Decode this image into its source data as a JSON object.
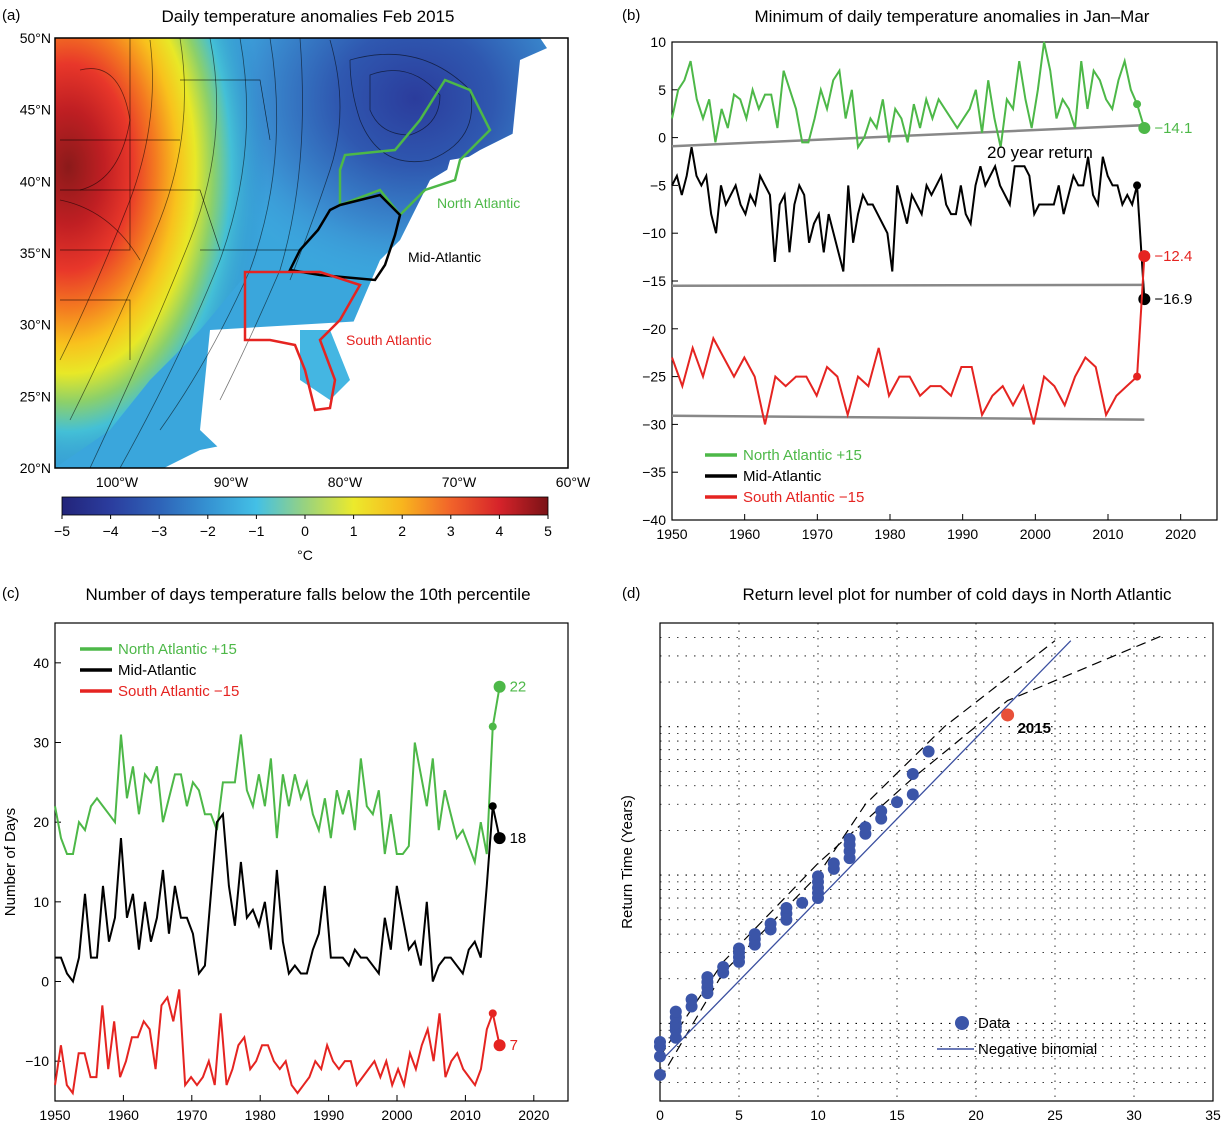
{
  "panels": {
    "a": {
      "tag": "(a)",
      "title": "Daily temperature anomalies Feb 2015",
      "lat_labels": [
        "50°N",
        "45°N",
        "40°N",
        "35°N",
        "30°N",
        "25°N",
        "20°N"
      ],
      "lon_labels": [
        "100°W",
        "90°W",
        "80°W",
        "70°W",
        "60°W"
      ],
      "colorbar_ticks": [
        "−5",
        "−4",
        "−3",
        "−2",
        "−1",
        "0",
        "1",
        "2",
        "3",
        "4",
        "5"
      ],
      "colorbar_label": "°C",
      "region_labels": {
        "north": "North Atlantic",
        "mid": "Mid-Atlantic",
        "south": "South Atlantic"
      },
      "colors": {
        "north": "#4db848",
        "mid": "#000000",
        "south": "#e52421"
      }
    },
    "b": {
      "tag": "(b)",
      "title": "Minimum of daily temperature anomalies in Jan–Mar",
      "annotation": "20 year return",
      "end_labels": [
        "−14.1",
        "−16.9",
        "−12.4"
      ],
      "legend": [
        "North Atlantic +15",
        "Mid-Atlantic",
        "South Atlantic −15"
      ]
    },
    "c": {
      "tag": "(c)",
      "title": "Number of days temperature falls below the 10th percentile",
      "end_labels": [
        "22",
        "18",
        "7"
      ],
      "legend": [
        "North Atlantic +15",
        "Mid-Atlantic",
        "South Atlantic −15"
      ]
    },
    "d": {
      "tag": "(d)",
      "title": "Return level plot for number of cold days in North Atlantic",
      "point_label": "2015",
      "legend": [
        "Data",
        "Negative binomial"
      ]
    }
  },
  "chart_data": [
    {
      "panel": "a",
      "type": "heatmap",
      "title": "Daily temperature anomalies Feb 2015",
      "xlim": [
        -105,
        -60
      ],
      "ylim": [
        20,
        50
      ],
      "colorbar_range": [
        -5,
        5
      ],
      "colorbar_unit": "°C",
      "field_samples_lonlat_value": [
        [
          -104,
          46,
          4.5
        ],
        [
          -100,
          44,
          4.8
        ],
        [
          -96,
          44,
          3.5
        ],
        [
          -92,
          45,
          1.5
        ],
        [
          -88,
          45,
          -0.5
        ],
        [
          -84,
          46,
          -2.5
        ],
        [
          -80,
          47,
          -3.8
        ],
        [
          -75,
          47,
          -4.6
        ],
        [
          -70,
          46,
          -3.8
        ],
        [
          -65,
          46,
          -2.8
        ],
        [
          -104,
          40,
          4.3
        ],
        [
          -100,
          39,
          4.0
        ],
        [
          -96,
          38,
          2.5
        ],
        [
          -92,
          38,
          1.0
        ],
        [
          -88,
          38,
          -0.3
        ],
        [
          -84,
          40,
          -1.5
        ],
        [
          -80,
          41,
          -2.5
        ],
        [
          -76,
          42,
          -3.0
        ],
        [
          -104,
          33,
          1.5
        ],
        [
          -100,
          33,
          2.5
        ],
        [
          -96,
          33,
          1.5
        ],
        [
          -92,
          33,
          0.5
        ],
        [
          -88,
          33,
          -0.3
        ],
        [
          -84,
          32,
          -0.8
        ],
        [
          -80,
          33,
          -1.5
        ],
        [
          -104,
          26,
          0.5
        ],
        [
          -100,
          27,
          0.3
        ],
        [
          -96,
          28,
          -0.3
        ],
        [
          -84,
          28,
          -1.0
        ],
        [
          -82,
          26,
          -1.5
        ]
      ]
    },
    {
      "panel": "b",
      "type": "line",
      "title": "Minimum of daily temperature anomalies in Jan–Mar",
      "xlim": [
        1950,
        2025
      ],
      "ylim": [
        -40,
        10
      ],
      "yticks": [
        10,
        5,
        0,
        -5,
        -10,
        -15,
        -20,
        -25,
        -30,
        -35,
        -40
      ],
      "xticks": [
        1950,
        1960,
        1970,
        1980,
        1990,
        2000,
        2010,
        2020
      ],
      "x_start": 1950,
      "series": [
        {
          "name": "North Atlantic +15",
          "color": "#4db848",
          "values": [
            2,
            5,
            6,
            8,
            4,
            2,
            4,
            -0.5,
            3,
            1,
            4.5,
            4,
            2,
            5,
            3,
            4.5,
            4.5,
            1,
            7,
            5,
            3,
            -0.5,
            -0.5,
            2,
            5,
            3,
            6,
            7,
            2,
            5,
            -1,
            0,
            2,
            1,
            4,
            -0.5,
            3,
            2,
            -0.5,
            3.5,
            1,
            4,
            2,
            4,
            3,
            2,
            1,
            2,
            3,
            5,
            0.5,
            6,
            2,
            -1,
            4,
            3,
            8,
            4,
            1,
            5,
            10,
            7,
            2,
            4,
            3,
            1,
            8,
            3,
            7,
            6,
            4,
            3,
            6,
            8,
            5,
            3.5
          ],
          "last": 1,
          "end_label": "−14.1"
        },
        {
          "name": "Mid-Atlantic",
          "color": "#000000",
          "values": [
            -5,
            -4,
            -6,
            -4,
            -1,
            -4,
            -5,
            -4,
            -8,
            -10,
            -5,
            -7,
            -6,
            -5,
            -7,
            -8,
            -6,
            -7,
            -4,
            -5,
            -6,
            -13,
            -7,
            -6,
            -12,
            -7,
            -5,
            -6,
            -11,
            -9,
            -8,
            -12,
            -8,
            -10,
            -12,
            -14,
            -5,
            -11,
            -8,
            -6,
            -7,
            -7,
            -8,
            -9,
            -10,
            -14,
            -5,
            -7,
            -9,
            -6,
            -7,
            -8,
            -5,
            -6,
            -5,
            -4,
            -7,
            -8,
            -8,
            -5,
            -8,
            -9,
            -5,
            -3,
            -5,
            -4,
            -3,
            -5,
            -6,
            -7,
            -3,
            -3,
            -3,
            -4,
            -8,
            -7,
            -7,
            -7,
            -7,
            -5,
            -8,
            -6,
            -4,
            -5,
            -5,
            -2,
            -6,
            -7,
            -2,
            -4,
            -5,
            -5,
            -7,
            -6,
            -7,
            -5
          ],
          "last": -16.9,
          "end_label": "−16.9"
        },
        {
          "name": "South Atlantic −15",
          "color": "#e52421",
          "values": [
            -23,
            -26,
            -22,
            -25,
            -21,
            -23,
            -25,
            -23,
            -25,
            -30,
            -25,
            -26,
            -25,
            -25,
            -27,
            -24,
            -25,
            -29,
            -25,
            -26,
            -22,
            -27,
            -25,
            -25,
            -27,
            -26,
            -26,
            -27,
            -24,
            -24,
            -29,
            -27,
            -26,
            -28,
            -26,
            -30,
            -25,
            -26,
            -28,
            -25,
            -23,
            -24,
            -29,
            -27,
            -26,
            -25
          ],
          "last": -12.4,
          "end_label": "−12.4"
        }
      ],
      "return_lines": [
        {
          "series": "North Atlantic +15",
          "x": [
            1950,
            2015
          ],
          "y": [
            -0.9,
            1.3
          ]
        },
        {
          "series": "Mid-Atlantic",
          "x": [
            1950,
            2015
          ],
          "y": [
            -15.5,
            -15.4
          ]
        },
        {
          "series": "South Atlantic −15",
          "x": [
            1950,
            2015
          ],
          "y": [
            -29.1,
            -29.5
          ]
        }
      ],
      "legend": "bottom-left"
    },
    {
      "panel": "c",
      "type": "line",
      "title": "Number of days temperature falls below the 10th percentile",
      "ylabel": "Number of Days",
      "xlim": [
        1950,
        2025
      ],
      "ylim": [
        -15,
        45
      ],
      "yticks": [
        40,
        30,
        20,
        10,
        0,
        -10
      ],
      "xticks": [
        1950,
        1960,
        1970,
        1980,
        1990,
        2000,
        2010,
        2020
      ],
      "x_start": 1950,
      "series": [
        {
          "name": "North Atlantic +15",
          "color": "#4db848",
          "values": [
            22,
            18,
            16,
            16,
            20,
            19,
            22,
            23,
            22,
            21,
            20,
            31,
            23,
            27,
            21,
            26,
            25,
            27,
            20,
            23,
            26,
            26,
            22,
            25,
            24,
            21,
            21,
            19,
            25,
            25,
            25,
            31,
            24,
            22,
            26,
            22,
            28,
            18,
            26,
            22,
            26,
            23,
            25,
            21,
            19,
            23,
            18,
            24,
            21,
            24,
            19,
            28,
            22,
            21,
            24,
            16,
            21,
            16,
            16,
            17,
            30,
            26,
            22,
            28,
            19,
            24,
            21,
            18,
            19,
            17,
            15,
            20,
            16,
            32
          ],
          "last": 37,
          "end_label": "22"
        },
        {
          "name": "Mid-Atlantic",
          "color": "#000000",
          "values": [
            3,
            3,
            1,
            0,
            3,
            11,
            3,
            3,
            12,
            5,
            8,
            18,
            8,
            11,
            4,
            10,
            5,
            8,
            14,
            6,
            12,
            8,
            8,
            6,
            1,
            2,
            11,
            20,
            21,
            12,
            7,
            15,
            8,
            9,
            7,
            10,
            4,
            14,
            5,
            1,
            2,
            1,
            1,
            4,
            6,
            12,
            3,
            3,
            3,
            2,
            4,
            3,
            3,
            2,
            1,
            8,
            4,
            12,
            8,
            4,
            5,
            2,
            10,
            0,
            2,
            3,
            3,
            2,
            1,
            4,
            5,
            3,
            12,
            22
          ],
          "last": 18,
          "end_label": "18"
        },
        {
          "name": "South Atlantic −15",
          "color": "#e52421",
          "values": [
            -13,
            -8,
            -13,
            -14,
            -9,
            -9,
            -12,
            -12,
            -3,
            -11,
            -5,
            -12,
            -10,
            -7,
            -7,
            -5,
            -6,
            -11,
            -3,
            -2,
            -5,
            -1,
            -13,
            -12,
            -13,
            -12,
            -10,
            -13,
            -4,
            -13,
            -11,
            -8,
            -7,
            -11,
            -10,
            -8,
            -8,
            -10,
            -11,
            -10,
            -13,
            -14,
            -13,
            -12,
            -10,
            -11,
            -8,
            -10,
            -11,
            -10,
            -10,
            -13,
            -12,
            -11,
            -10,
            -12,
            -10,
            -13,
            -11,
            -13,
            -9,
            -11,
            -8,
            -6,
            -10,
            -4,
            -12,
            -10,
            -9,
            -11,
            -12,
            -13,
            -11,
            -6,
            -4
          ],
          "last": -8,
          "end_label": "7"
        }
      ],
      "legend": "top-left"
    },
    {
      "panel": "d",
      "type": "scatter",
      "title": "Return level plot for number of cold days in North Atlantic",
      "ylabel": "Return Time (Years)",
      "xlim": [
        0,
        35
      ],
      "xticks": [
        0,
        5,
        10,
        15,
        20,
        25,
        30,
        35
      ],
      "y_scale": "log",
      "points": [
        {
          "x": 0,
          "y": 0.45
        },
        {
          "x": 0,
          "y": 0.6
        },
        {
          "x": 0,
          "y": 0.7
        },
        {
          "x": 0,
          "y": 0.75
        },
        {
          "x": 1,
          "y": 0.8
        },
        {
          "x": 1,
          "y": 0.9
        },
        {
          "x": 1,
          "y": 0.95
        },
        {
          "x": 1,
          "y": 1.0
        },
        {
          "x": 1,
          "y": 1.1
        },
        {
          "x": 1,
          "y": 1.2
        },
        {
          "x": 2,
          "y": 1.3
        },
        {
          "x": 2,
          "y": 1.45
        },
        {
          "x": 3,
          "y": 1.6
        },
        {
          "x": 3,
          "y": 1.75
        },
        {
          "x": 3,
          "y": 1.9
        },
        {
          "x": 3,
          "y": 2.05
        },
        {
          "x": 4,
          "y": 2.2
        },
        {
          "x": 4,
          "y": 2.4
        },
        {
          "x": 5,
          "y": 2.6
        },
        {
          "x": 5,
          "y": 2.8
        },
        {
          "x": 5,
          "y": 3.0
        },
        {
          "x": 5,
          "y": 3.2
        },
        {
          "x": 6,
          "y": 3.4
        },
        {
          "x": 6,
          "y": 3.7
        },
        {
          "x": 6,
          "y": 4.0
        },
        {
          "x": 7,
          "y": 4.3
        },
        {
          "x": 7,
          "y": 4.7
        },
        {
          "x": 8,
          "y": 5.0
        },
        {
          "x": 8,
          "y": 5.5
        },
        {
          "x": 8,
          "y": 6.0
        },
        {
          "x": 9,
          "y": 6.5
        },
        {
          "x": 10,
          "y": 7.0
        },
        {
          "x": 10,
          "y": 7.6
        },
        {
          "x": 10,
          "y": 8.2
        },
        {
          "x": 10,
          "y": 9.0
        },
        {
          "x": 10,
          "y": 9.8
        },
        {
          "x": 11,
          "y": 11
        },
        {
          "x": 11,
          "y": 12
        },
        {
          "x": 12,
          "y": 13
        },
        {
          "x": 12,
          "y": 14.5
        },
        {
          "x": 12,
          "y": 16
        },
        {
          "x": 12,
          "y": 17.5
        },
        {
          "x": 13,
          "y": 19
        },
        {
          "x": 13,
          "y": 21
        },
        {
          "x": 14,
          "y": 24
        },
        {
          "x": 14,
          "y": 27
        },
        {
          "x": 15,
          "y": 31
        },
        {
          "x": 16,
          "y": 35
        },
        {
          "x": 16,
          "y": 48
        },
        {
          "x": 17,
          "y": 68
        }
      ],
      "highlight": {
        "x": 22,
        "y": 120,
        "label": "2015",
        "color": "#e8503a"
      },
      "fit": {
        "name": "Negative binomial",
        "color": "#3a4fa0",
        "x": [
          0,
          26
        ],
        "y": [
          0.55,
          380
        ]
      },
      "ci_upper": {
        "x": [
          0,
          4,
          10,
          13,
          18,
          25
        ],
        "y": [
          0.42,
          2.2,
          10,
          30,
          100,
          380
        ]
      },
      "ci_lower": {
        "x": [
          0,
          4,
          10,
          16,
          22,
          32
        ],
        "y": [
          0.6,
          2.6,
          12,
          45,
          150,
          420
        ]
      },
      "legend": "bottom-right"
    }
  ]
}
